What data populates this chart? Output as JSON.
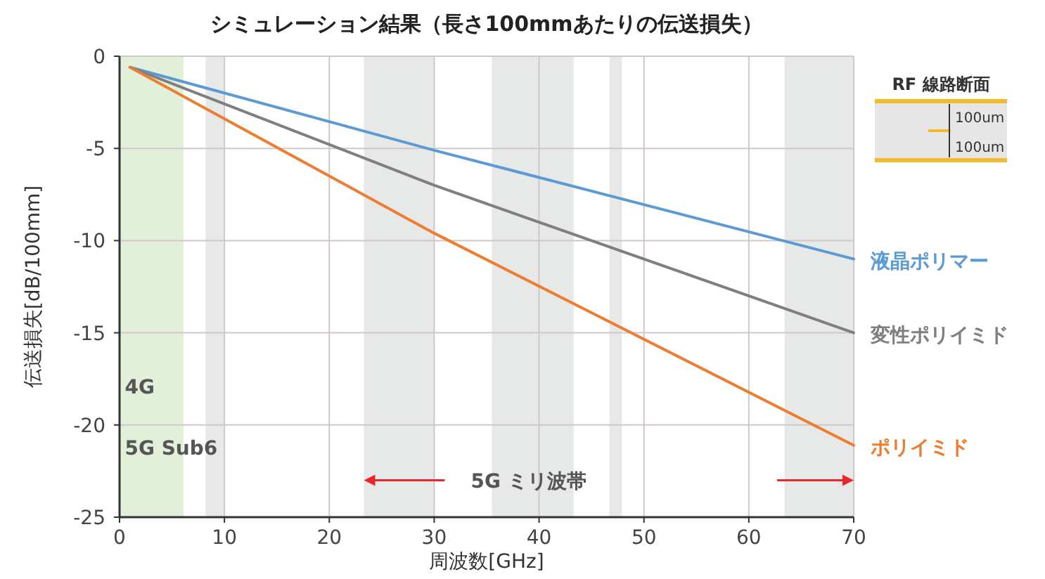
{
  "chart_data": {
    "type": "line",
    "title": "シミュレーション結果（長さ100mmあたりの伝送損失）",
    "xlabel": "周波数[GHz]",
    "ylabel": "伝送損失[dB/100mm]",
    "x": [
      1,
      30,
      70
    ],
    "series": [
      {
        "name": "液晶ポリマー",
        "color": "#5b9bd5",
        "values": [
          -0.6,
          -5.1,
          -11.0
        ]
      },
      {
        "name": "変性ポリイミド",
        "color": "#7f7f7f",
        "values": [
          -0.6,
          -7.0,
          -15.0
        ]
      },
      {
        "name": "ポリイミド",
        "color": "#ed7d31",
        "values": [
          -0.6,
          -9.6,
          -21.1
        ]
      }
    ],
    "xlim": [
      0,
      70
    ],
    "xticks": [
      0,
      10,
      20,
      30,
      40,
      50,
      60,
      70
    ],
    "ylim": [
      -25,
      0
    ],
    "yticks": [
      -25,
      -20,
      -15,
      -10,
      -5,
      0
    ],
    "grid": true,
    "line_style": "solid",
    "marker": "none",
    "bands": [
      {
        "axis": "x",
        "from": 0,
        "to": 6.1,
        "color": "#e2efd9"
      },
      {
        "axis": "x",
        "from": 8.2,
        "to": 10,
        "color": "#e7e9e9"
      },
      {
        "axis": "x",
        "from": 23.3,
        "to": 30,
        "color": "#e7e9e9"
      },
      {
        "axis": "x",
        "from": 35.5,
        "to": 43.3,
        "color": "#e7e9e9"
      },
      {
        "axis": "x",
        "from": 46.7,
        "to": 47.9,
        "color": "#e7e9e9"
      },
      {
        "axis": "x",
        "from": 63.4,
        "to": 70,
        "color": "#e7e9e9"
      }
    ],
    "annotations": [
      "4G",
      "5G Sub6",
      "5G ミリ波帯",
      "RF 線路断面",
      "100um",
      "100um"
    ]
  }
}
